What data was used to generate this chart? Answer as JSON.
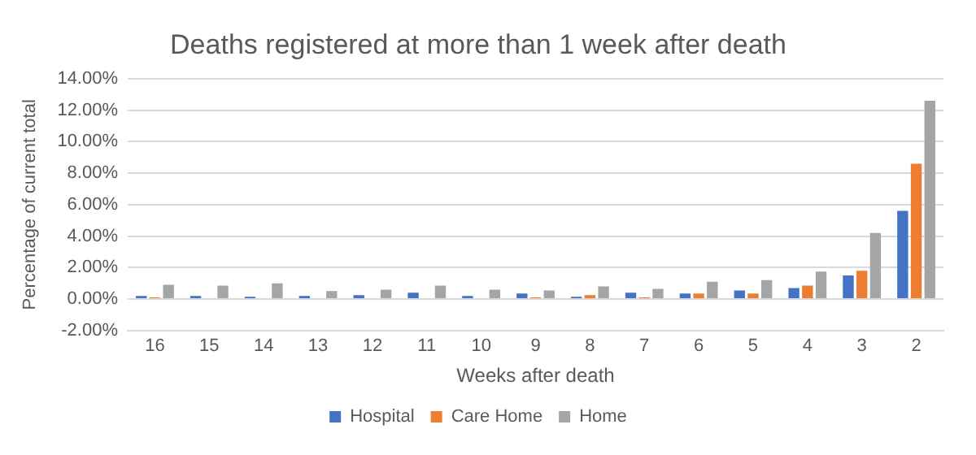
{
  "chart_data": {
    "type": "bar",
    "title": "Deaths registered at more than 1 week after death",
    "xlabel": "Weeks after death",
    "ylabel": "Percentage of current total",
    "categories": [
      "16",
      "15",
      "14",
      "13",
      "12",
      "11",
      "10",
      "9",
      "8",
      "7",
      "6",
      "5",
      "4",
      "3",
      "2"
    ],
    "series": [
      {
        "name": "Hospital",
        "color": "#4472c4",
        "values": [
          0.2,
          0.2,
          0.15,
          0.2,
          0.25,
          0.4,
          0.2,
          0.35,
          0.15,
          0.4,
          0.35,
          0.55,
          0.7,
          1.5,
          5.6
        ]
      },
      {
        "name": "Care Home",
        "color": "#ed7d31",
        "values": [
          0.1,
          0,
          0,
          0,
          0,
          0,
          0,
          0.1,
          0.25,
          0.1,
          0.35,
          0.35,
          0.85,
          1.8,
          8.6
        ]
      },
      {
        "name": "Home",
        "color": "#a5a5a5",
        "values": [
          0.9,
          0.85,
          1.0,
          0.5,
          0.6,
          0.85,
          0.6,
          0.55,
          0.8,
          0.65,
          1.1,
          1.2,
          1.75,
          4.2,
          12.6
        ]
      }
    ],
    "ylim": [
      -2,
      14
    ],
    "yticks": [
      {
        "value": -2,
        "label": "-2.00%"
      },
      {
        "value": 0,
        "label": "0.00%"
      },
      {
        "value": 2,
        "label": "2.00%"
      },
      {
        "value": 4,
        "label": "4.00%"
      },
      {
        "value": 6,
        "label": "6.00%"
      },
      {
        "value": 8,
        "label": "8.00%"
      },
      {
        "value": 10,
        "label": "10.00%"
      },
      {
        "value": 12,
        "label": "12.00%"
      },
      {
        "value": 14,
        "label": "14.00%"
      }
    ],
    "grid": "y",
    "legend": "bottom"
  }
}
